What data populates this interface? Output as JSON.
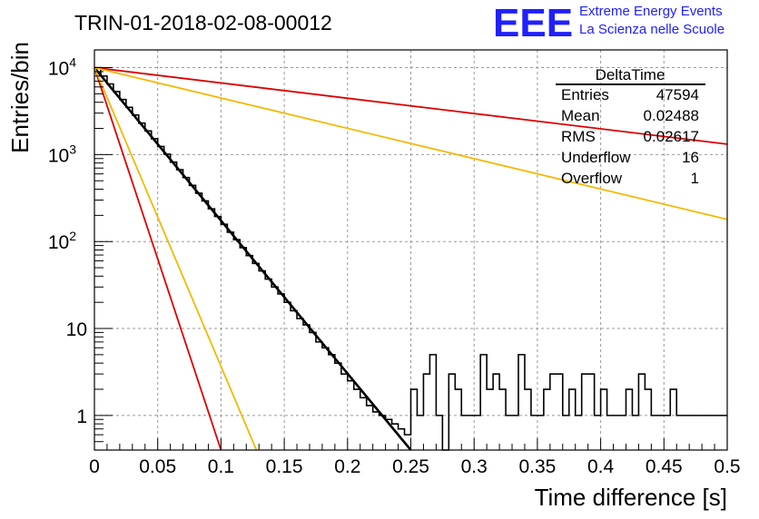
{
  "chart_data": {
    "type": "line",
    "title": "TRIN-01-2018-02-08-00012",
    "xlabel": "Time difference [s]",
    "ylabel": "Entries/bin",
    "xlim": [
      0,
      0.5
    ],
    "ylim": [
      0.4,
      16000
    ],
    "y_scale": "log",
    "grid": true,
    "x_ticks": [
      "0",
      "0.05",
      "0.1",
      "0.15",
      "0.2",
      "0.25",
      "0.3",
      "0.35",
      "0.4",
      "0.45",
      "0.5"
    ],
    "y_ticks": [
      {
        "value": 1,
        "label": "1"
      },
      {
        "value": 10,
        "label": "10"
      },
      {
        "value": 100,
        "label": "10",
        "exp": "2"
      },
      {
        "value": 1000,
        "label": "10",
        "exp": "3"
      },
      {
        "value": 10000,
        "label": "10",
        "exp": "4"
      }
    ],
    "stats": {
      "name": "DeltaTime",
      "rows": [
        {
          "label": "Entries",
          "value": "47594"
        },
        {
          "label": "Mean",
          "value": "0.02488"
        },
        {
          "label": "RMS",
          "value": "0.02617"
        },
        {
          "label": "Underflow",
          "value": "16"
        },
        {
          "label": "Overflow",
          "value": "1"
        }
      ]
    },
    "histogram": {
      "color": "#000000",
      "bin_width": 0.005,
      "values": [
        10000,
        8000,
        6500,
        5300,
        4300,
        3500,
        2850,
        2300,
        1870,
        1520,
        1240,
        1010,
        820,
        670,
        545,
        443,
        360,
        293,
        238,
        194,
        158,
        128,
        105,
        85,
        69,
        56,
        46,
        37,
        30,
        25,
        20,
        16,
        13,
        11,
        9,
        7,
        6,
        5,
        4,
        3,
        2.5,
        2,
        1.6,
        1.3,
        1.1,
        1,
        0.9,
        0.8,
        0.7,
        0.6,
        2,
        1,
        3,
        5,
        1,
        0,
        3,
        2,
        1,
        1,
        1,
        5,
        2,
        3,
        2,
        1,
        1,
        5,
        2,
        1,
        1,
        2,
        3,
        3,
        1,
        2,
        1,
        3,
        3,
        1,
        2,
        1,
        1,
        1,
        2,
        1,
        3,
        2,
        1,
        1,
        1,
        2,
        1,
        1,
        1,
        1,
        1,
        1,
        1,
        1
      ]
    },
    "series": [
      {
        "color": "#000000",
        "x": [
          0,
          0.25
        ],
        "y": [
          10000,
          0.4
        ]
      },
      {
        "color": "#dd0000",
        "x": [
          0,
          0.5
        ],
        "y": [
          10000,
          1320
        ]
      },
      {
        "color": "#f5b800",
        "x": [
          0,
          0.5
        ],
        "y": [
          10000,
          180
        ]
      },
      {
        "color": "#dd0000",
        "x": [
          0,
          0.1
        ],
        "y": [
          10000,
          0.4
        ]
      },
      {
        "color": "#f5b800",
        "x": [
          0,
          0.128
        ],
        "y": [
          10000,
          0.4
        ]
      }
    ]
  },
  "logo": {
    "mark": "EEE",
    "line1": "Extreme Energy Events",
    "line2": "La Scienza nelle Scuole",
    "color": "#2020ff"
  }
}
